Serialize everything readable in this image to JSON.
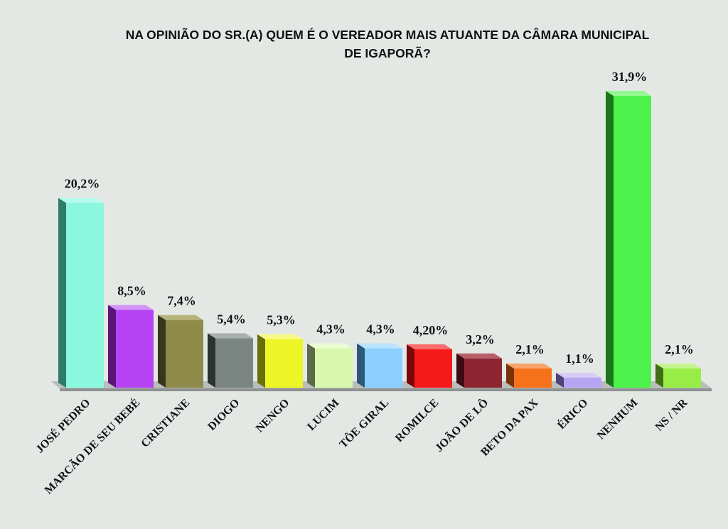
{
  "chart_data": {
    "type": "bar",
    "title_line1": "NA OPINIÃO DO SR.(A) QUEM É O VEREADOR MAIS ATUANTE DA CÂMARA MUNICIPAL",
    "title_line2": "DE IGAPORÃ?",
    "xlabel": "",
    "ylabel": "",
    "ylim": [
      0,
      35
    ],
    "grid": false,
    "legend": "none",
    "categories": [
      "JOSÉ PEDRO",
      "MARCÃO DE SEU BEBÉ",
      "CRISTIANE",
      "DIOGO",
      "NENGO",
      "LUCIM",
      "TÔE GIRAL",
      "ROMILCE",
      "JOÃO DE LÔ",
      "BETO DA PAX",
      "ÉRICO",
      "NENHUM",
      "NS / NR"
    ],
    "values": [
      20.2,
      8.5,
      7.4,
      5.4,
      5.3,
      4.3,
      4.3,
      4.2,
      3.2,
      2.1,
      1.1,
      31.9,
      2.1
    ],
    "value_labels": [
      "20,2%",
      "8,5%",
      "7,4%",
      "5,4%",
      "5,3%",
      "4,3%",
      "4,3%",
      "4,20%",
      "3,2%",
      "2,1%",
      "1,1%",
      "31,9%",
      "2,1%"
    ],
    "colors": [
      "#8cf7df",
      "#b643f3",
      "#8e8b4a",
      "#7b8683",
      "#eef526",
      "#d8f8ad",
      "#8ccfff",
      "#f51a1a",
      "#8d2531",
      "#f5711b",
      "#b6a6f1",
      "#4cf24b",
      "#97ec45"
    ],
    "side_colors": [
      "#2f7a69",
      "#5a1579",
      "#38361b",
      "#2d3331",
      "#6a6e0e",
      "#5c6a4a",
      "#2e5878",
      "#7a0808",
      "#3d0c12",
      "#7a3208",
      "#4c4474",
      "#1b771b",
      "#3f6e17"
    ],
    "top_colors": [
      "#b5fbeb",
      "#d296f8",
      "#b7b47a",
      "#a7b0ad",
      "#f6fa85",
      "#ecfcd3",
      "#b9e3ff",
      "#fa6b6b",
      "#b8606a",
      "#f9a46b",
      "#d6cdf7",
      "#93f792",
      "#c4f48f"
    ]
  }
}
